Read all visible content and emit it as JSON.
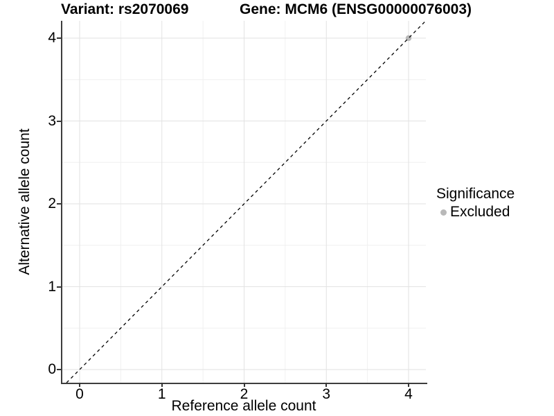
{
  "titles": {
    "variant": "Variant: rs2070069",
    "gene": "Gene: MCM6 (ENSG00000076003)"
  },
  "axes": {
    "x_label": "Reference allele count",
    "y_label": "Alternative allele count",
    "x_ticks": [
      0,
      1,
      2,
      3,
      4
    ],
    "y_ticks": [
      0,
      1,
      2,
      3,
      4
    ]
  },
  "legend": {
    "title": "Significance",
    "entries": [
      {
        "label": "Excluded",
        "color": "#b9b9b9"
      }
    ]
  },
  "chart_data": {
    "type": "scatter",
    "title": "Variant: rs2070069 | Gene: MCM6 (ENSG00000076003)",
    "xlabel": "Reference allele count",
    "ylabel": "Alternative allele count",
    "xlim": [
      -0.21,
      4.21
    ],
    "ylim": [
      -0.16,
      4.21
    ],
    "x_ticks": [
      0,
      1,
      2,
      3,
      4
    ],
    "y_ticks": [
      0,
      1,
      2,
      3,
      4
    ],
    "grid": "major+minor",
    "legend_position": "right",
    "legend_title": "Significance",
    "series": [
      {
        "name": "Excluded",
        "color": "#b9b9b9",
        "points": [
          [
            4,
            4
          ]
        ]
      }
    ],
    "reference_line": {
      "slope": 1,
      "intercept": 0,
      "style": "dashed",
      "color": "#000000"
    }
  },
  "colors": {
    "background": "#ffffff",
    "grid_major": "#e2e2e2",
    "grid_minor": "#f0f0f0",
    "axis": "#3d3d3d",
    "point_gray": "#b9b9b9"
  }
}
